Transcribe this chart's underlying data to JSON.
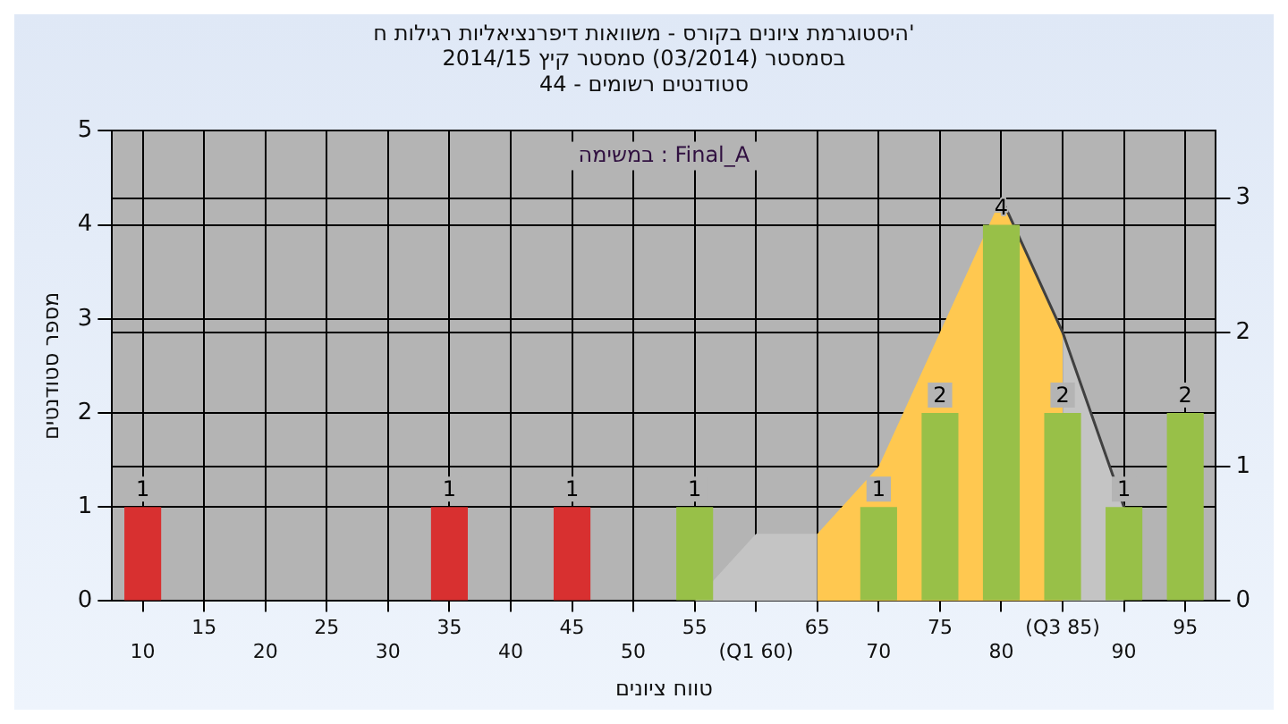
{
  "chart_data": {
    "type": "bar",
    "title": "היסטוגרמת ציונים בקורס - משוואות דיפרנציאליות רגילות ח'\nבסמסטר (03/2014) סמסטר קיץ 2014/15\nסטודנטים רשומים - 44",
    "xlabel": "טווח ציונים",
    "ylabel": "מספר סטודנטים",
    "annotations": [
      "במשימה : Final_A"
    ],
    "categories": [
      "10",
      "15",
      "20",
      "25",
      "30",
      "35",
      "40",
      "45",
      "50",
      "55",
      "(Q1 60)",
      "65",
      "70",
      "75",
      "80",
      "(Q3 85)",
      "90",
      "95"
    ],
    "series": [
      {
        "type": "bar",
        "values": [
          1,
          0,
          0,
          0,
          0,
          1,
          0,
          1,
          0,
          1,
          0,
          0,
          1,
          2,
          4,
          2,
          1,
          2
        ],
        "colors": [
          "#d83030",
          "#d83030",
          "#d83030",
          "#d83030",
          "#d83030",
          "#d83030",
          "#d83030",
          "#d83030",
          "#d83030",
          "#98c048",
          "#98c048",
          "#98c048",
          "#98c048",
          "#98c048",
          "#98c048",
          "#98c048",
          "#98c048",
          "#98c048"
        ],
        "value_labels": [
          "1",
          null,
          null,
          null,
          null,
          "1",
          null,
          "1",
          null,
          "1",
          null,
          null,
          "1",
          "2",
          "4",
          "2",
          "1",
          "2"
        ]
      },
      {
        "type": "area",
        "axis": "y2",
        "color": "#c4c4c4",
        "values": [
          null,
          null,
          null,
          null,
          null,
          null,
          null,
          null,
          null,
          0,
          0.5,
          0.5,
          null,
          null,
          null,
          2,
          0.7,
          null
        ]
      },
      {
        "type": "area",
        "axis": "y2",
        "color": "#ffc850",
        "values": [
          null,
          null,
          null,
          null,
          null,
          null,
          null,
          null,
          null,
          null,
          null,
          0.5,
          1,
          2,
          3,
          2,
          null,
          null
        ]
      },
      {
        "type": "line",
        "axis": "y2",
        "color": "#404040",
        "values": [
          null,
          null,
          null,
          null,
          null,
          null,
          null,
          null,
          null,
          null,
          null,
          null,
          null,
          null,
          3,
          2,
          0.7,
          null
        ]
      }
    ],
    "ylim": [
      0,
      5
    ],
    "yticks": [
      0,
      1,
      2,
      3,
      4,
      5
    ],
    "y2lim": [
      0,
      3.5
    ],
    "y2ticks": [
      0,
      1,
      2,
      3
    ],
    "grid": true,
    "legend": false
  }
}
